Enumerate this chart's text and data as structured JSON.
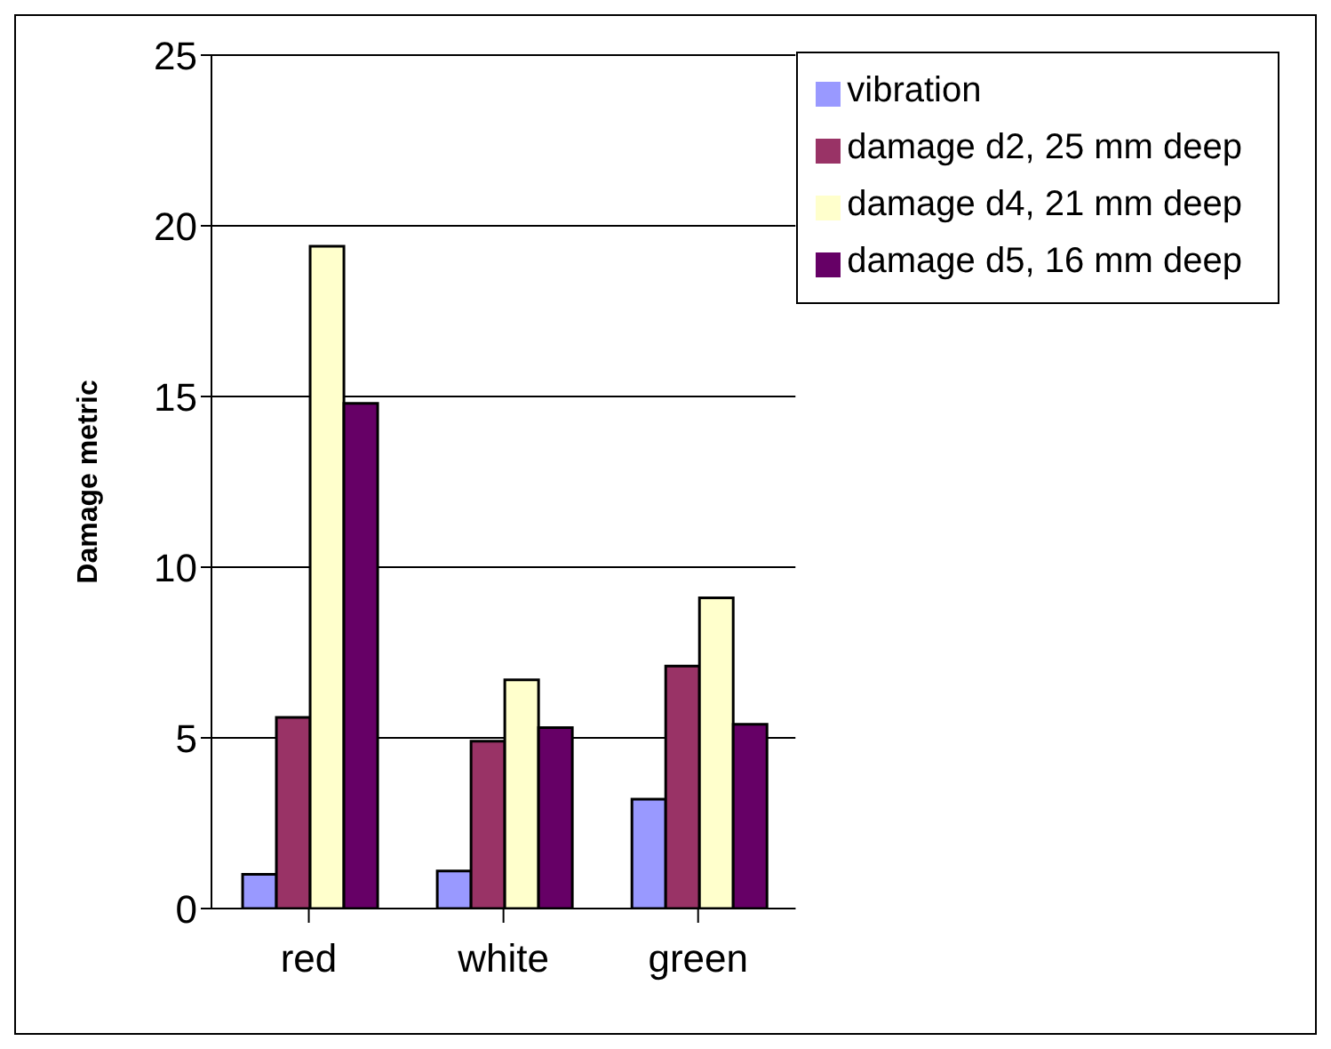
{
  "chart_data": {
    "type": "bar",
    "ylabel": "Damage metric",
    "categories": [
      "red",
      "white",
      "green"
    ],
    "series": [
      {
        "name": "vibration",
        "color": "#9999ff",
        "values": [
          1.0,
          1.1,
          3.2
        ]
      },
      {
        "name": "damage d2, 25 mm deep",
        "color": "#993366",
        "values": [
          5.6,
          4.9,
          7.1
        ]
      },
      {
        "name": "damage d4, 21 mm deep",
        "color": "#ffffcc",
        "values": [
          19.4,
          6.7,
          9.1
        ]
      },
      {
        "name": "damage d5, 16 mm deep",
        "color": "#660066",
        "values": [
          14.8,
          5.3,
          5.4
        ]
      }
    ],
    "ylim": [
      0,
      25
    ],
    "yticks": [
      0,
      5,
      10,
      15,
      20,
      25
    ],
    "grid": "y",
    "legend": "top right"
  }
}
